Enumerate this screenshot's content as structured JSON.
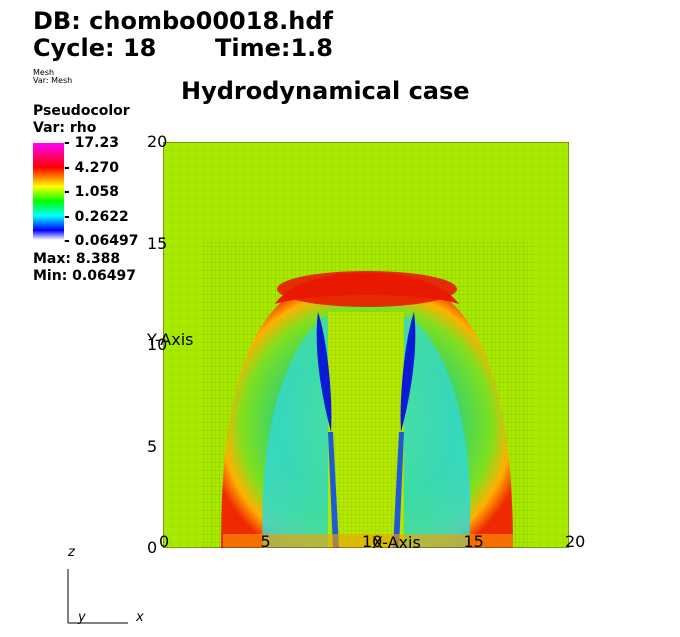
{
  "header": {
    "db_line": "DB: chombo00018.hdf",
    "cycle_label": "Cycle: 18",
    "time_label": "Time:1.8"
  },
  "mesh_info": {
    "mesh_label": "Mesh",
    "var_label": "Var: Mesh"
  },
  "plot_title": "Hydrodynamical case",
  "legend": {
    "title": "Pseudocolor",
    "var": "Var: rho",
    "ticks": [
      "17.23",
      "4.270",
      "1.058",
      "0.2622",
      "0.06497"
    ],
    "max_label": "Max:  8.388",
    "min_label": "Min:  0.06497",
    "colors": [
      "#ff00ff",
      "#ff0000",
      "#ffff00",
      "#00ff00",
      "#00ffff",
      "#0000ff",
      "#ffffff"
    ]
  },
  "axes": {
    "x_label": "X-Axis",
    "y_label": "Y-Axis",
    "x_ticks": [
      "0",
      "5",
      "10",
      "15",
      "20"
    ],
    "y_ticks": [
      "20",
      "15",
      "10",
      "5",
      "0"
    ]
  },
  "triad": {
    "z": "z",
    "y": "y",
    "x": "x"
  },
  "chart_data": {
    "type": "heatmap",
    "title": "Hydrodynamical case",
    "variable": "rho",
    "colormap_ticks": [
      17.23,
      4.27,
      1.058,
      0.2622,
      0.06497
    ],
    "max": 8.388,
    "min": 0.06497,
    "xlabel": "X-Axis",
    "ylabel": "Y-Axis",
    "xlim": [
      0,
      20
    ],
    "ylim": [
      0,
      20
    ],
    "x_ticks": [
      0,
      5,
      10,
      15,
      20
    ],
    "y_ticks": [
      0,
      5,
      10,
      15,
      20
    ],
    "mesh_overlay": true
  }
}
